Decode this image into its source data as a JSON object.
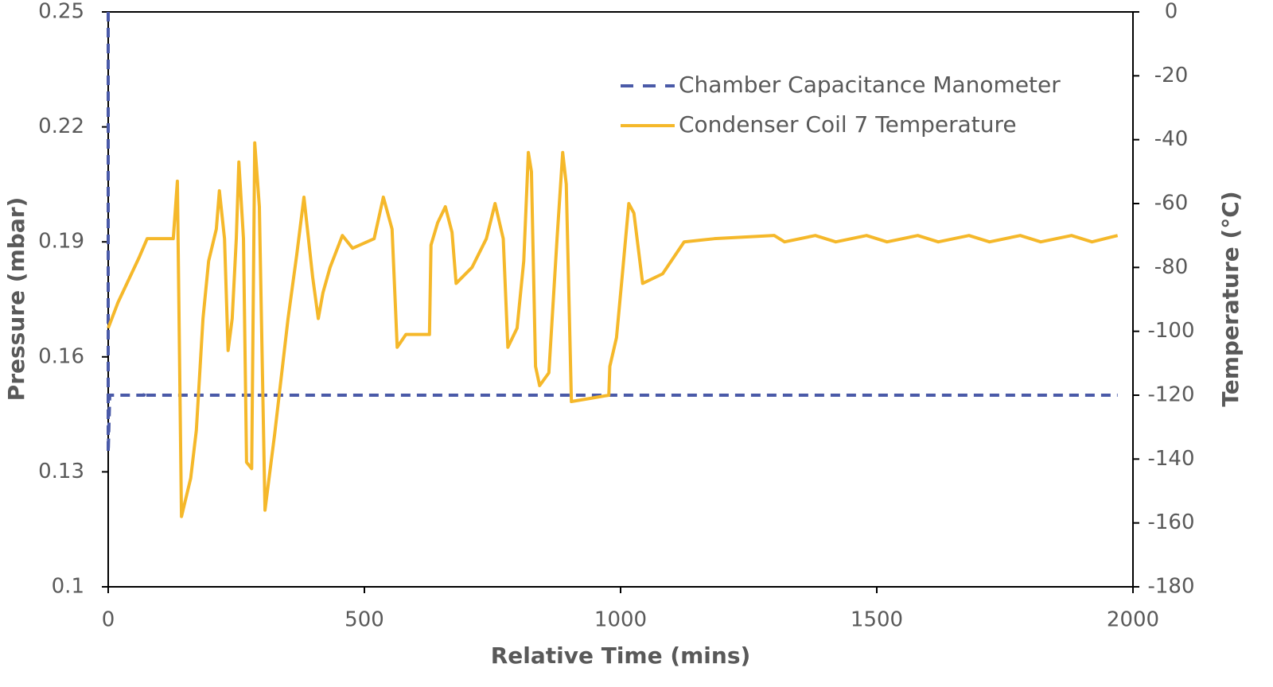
{
  "chart_data": {
    "type": "line",
    "x_label": "Relative Time (mins)",
    "y_label": "Pressure (mbar)",
    "y2_label": "Temperature (°C)",
    "xlim": [
      0,
      2000
    ],
    "xticks": [
      0,
      500,
      1000,
      1500,
      2000
    ],
    "ylim": [
      0.1,
      0.25
    ],
    "yticks": [
      0.1,
      0.13,
      0.16,
      0.19,
      0.22,
      0.25
    ],
    "y2lim": [
      -180,
      0
    ],
    "y2ticks": [
      -180,
      -160,
      -140,
      -120,
      -100,
      -80,
      -60,
      -40,
      -20,
      0
    ],
    "legend": "upper right",
    "series": [
      {
        "name": "Chamber Capacitance Manometer",
        "color": "#4a5aa8",
        "dash": true,
        "x": [
          0,
          0,
          3,
          70,
          72,
          74,
          1970
        ],
        "values": [
          0.25,
          0.135,
          0.15,
          0.15,
          0.151,
          0.15,
          0.15
        ]
      },
      {
        "name": "Condenser Coil 7 Temperature",
        "color": "#f5b82a",
        "axis": "y2",
        "x": [
          0,
          19,
          60,
          76,
          127,
          135,
          143,
          161,
          172,
          185,
          196,
          211,
          217,
          227,
          234,
          242,
          250,
          255,
          264,
          270,
          280,
          286,
          295,
          306,
          325,
          351,
          368,
          382,
          399,
          410,
          419,
          433,
          457,
          477,
          519,
          537,
          554,
          564,
          581,
          627,
          630,
          643,
          658,
          671,
          679,
          710,
          738,
          755,
          771,
          780,
          798,
          811,
          820,
          826,
          834,
          842,
          860,
          876,
          887,
          894,
          904,
          941,
          977,
          979,
          992,
          1003,
          1016,
          1026,
          1043,
          1082,
          1124,
          1183,
          1300,
          1320,
          1380,
          1420,
          1480,
          1520,
          1580,
          1620,
          1680,
          1720,
          1780,
          1820,
          1880,
          1920,
          1970
        ],
        "values": [
          -99,
          -91,
          -77,
          -71,
          -71,
          -53,
          -158,
          -146,
          -131,
          -96,
          -78,
          -68,
          -56,
          -71,
          -106,
          -96,
          -71,
          -47,
          -71,
          -141,
          -143,
          -41,
          -61,
          -156,
          -132,
          -96,
          -76,
          -58,
          -83,
          -96,
          -88,
          -80,
          -70,
          -74,
          -71,
          -58,
          -68,
          -105,
          -101,
          -101,
          -73,
          -66,
          -61,
          -69,
          -85,
          -80,
          -71,
          -60,
          -71,
          -105,
          -99,
          -78,
          -44,
          -50,
          -111,
          -117,
          -113,
          -71,
          -44,
          -54,
          -122,
          -121,
          -120,
          -111,
          -102,
          -83,
          -60,
          -63,
          -85,
          -82,
          -72,
          -71,
          -70,
          -72,
          -70,
          -72,
          -70,
          -72,
          -70,
          -72,
          -70,
          -72,
          -70,
          -72,
          -70,
          -72,
          -70
        ]
      }
    ]
  }
}
